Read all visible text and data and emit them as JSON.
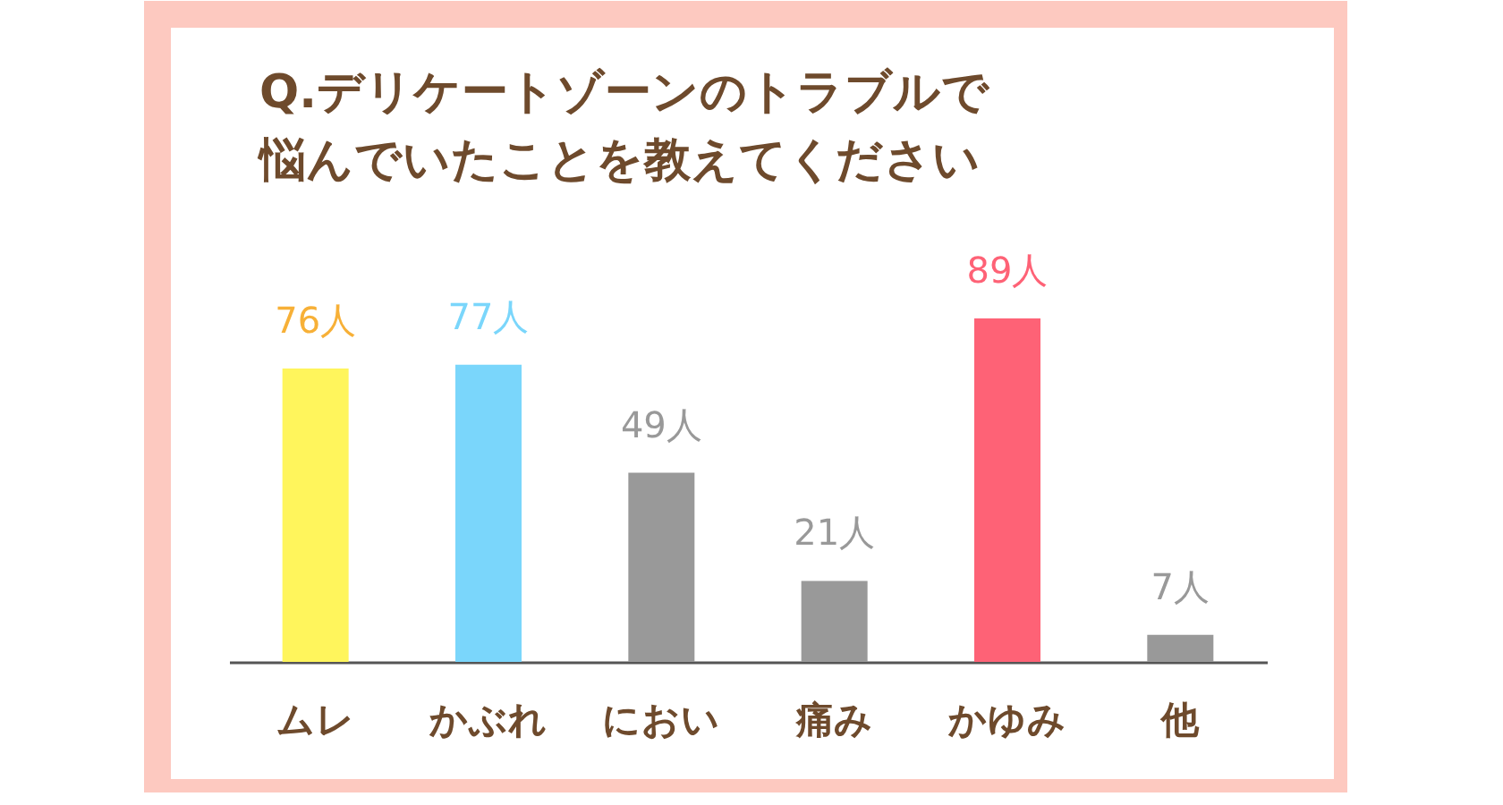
{
  "chart_data": {
    "type": "bar",
    "title": [
      "Q.デリケートゾーンのトラブルで",
      "悩んでいたことを教えてください"
    ],
    "categories": [
      "ムレ",
      "かぶれ",
      "におい",
      "痛み",
      "かゆみ",
      "他"
    ],
    "values": [
      76,
      77,
      49,
      21,
      89,
      7
    ],
    "colors": [
      "#fff55c",
      "#7ad6fb",
      "#999999",
      "#999999",
      "#fe6276",
      "#999999"
    ],
    "value_labels": [
      "76人",
      "77人",
      "49人",
      "21人",
      "89人",
      "7人"
    ],
    "grid": false
  }
}
